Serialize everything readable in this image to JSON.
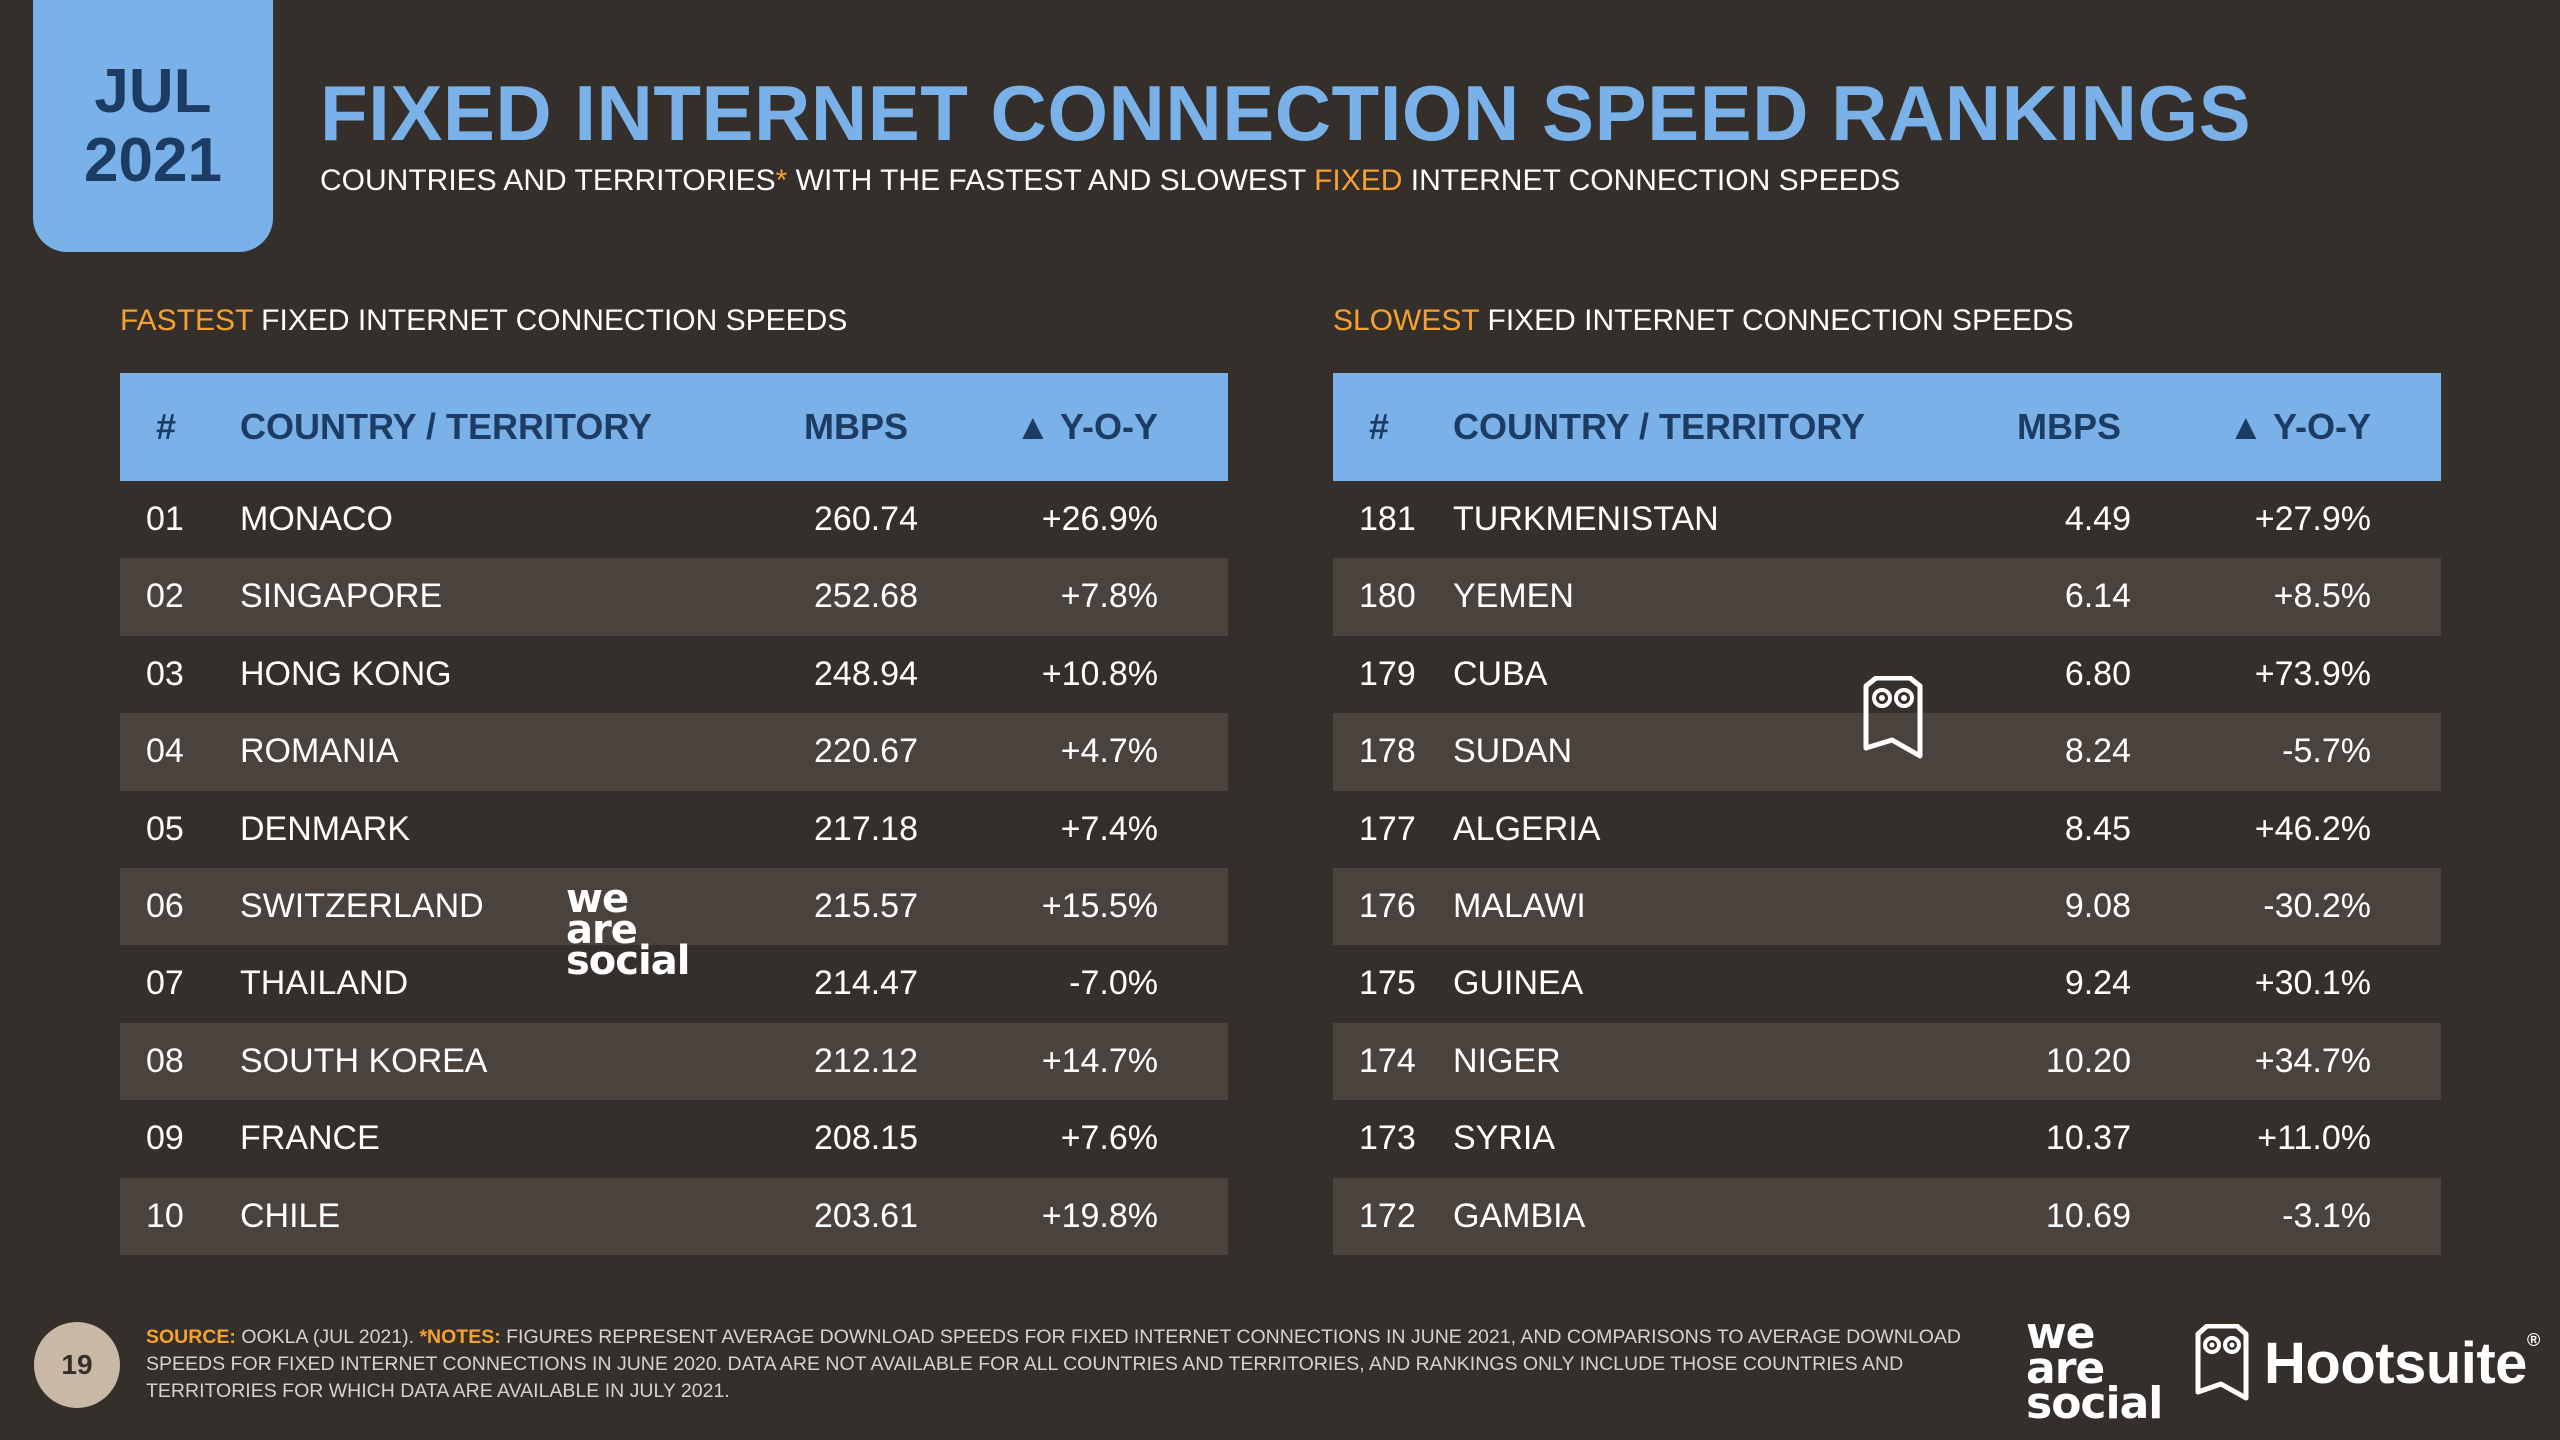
{
  "badge": {
    "month": "JUL",
    "year": "2021"
  },
  "title": "FIXED INTERNET CONNECTION SPEED RANKINGS",
  "subtitle": {
    "part1": "COUNTRIES AND TERRITORIES",
    "asterisk": "*",
    "part2": " WITH THE FASTEST AND SLOWEST ",
    "highlight": "FIXED",
    "part3": " INTERNET CONNECTION SPEEDS"
  },
  "fastest": {
    "heading_highlight": "FASTEST",
    "heading_rest": " FIXED INTERNET CONNECTION SPEEDS",
    "columns": {
      "rank": "#",
      "country": "COUNTRY / TERRITORY",
      "mbps": "MBPS",
      "yoy": "▲ Y-O-Y"
    },
    "rows": [
      {
        "rank": "01",
        "country": "MONACO",
        "mbps": "260.74",
        "yoy": "+26.9%"
      },
      {
        "rank": "02",
        "country": "SINGAPORE",
        "mbps": "252.68",
        "yoy": "+7.8%"
      },
      {
        "rank": "03",
        "country": "HONG KONG",
        "mbps": "248.94",
        "yoy": "+10.8%"
      },
      {
        "rank": "04",
        "country": "ROMANIA",
        "mbps": "220.67",
        "yoy": "+4.7%"
      },
      {
        "rank": "05",
        "country": "DENMARK",
        "mbps": "217.18",
        "yoy": "+7.4%"
      },
      {
        "rank": "06",
        "country": "SWITZERLAND",
        "mbps": "215.57",
        "yoy": "+15.5%"
      },
      {
        "rank": "07",
        "country": "THAILAND",
        "mbps": "214.47",
        "yoy": "-7.0%"
      },
      {
        "rank": "08",
        "country": "SOUTH KOREA",
        "mbps": "212.12",
        "yoy": "+14.7%"
      },
      {
        "rank": "09",
        "country": "FRANCE",
        "mbps": "208.15",
        "yoy": "+7.6%"
      },
      {
        "rank": "10",
        "country": "CHILE",
        "mbps": "203.61",
        "yoy": "+19.8%"
      }
    ]
  },
  "slowest": {
    "heading_highlight": "SLOWEST",
    "heading_rest": " FIXED INTERNET CONNECTION SPEEDS",
    "columns": {
      "rank": "#",
      "country": "COUNTRY / TERRITORY",
      "mbps": "MBPS",
      "yoy": "▲ Y-O-Y"
    },
    "rows": [
      {
        "rank": "181",
        "country": "TURKMENISTAN",
        "mbps": "4.49",
        "yoy": "+27.9%"
      },
      {
        "rank": "180",
        "country": "YEMEN",
        "mbps": "6.14",
        "yoy": "+8.5%"
      },
      {
        "rank": "179",
        "country": "CUBA",
        "mbps": "6.80",
        "yoy": "+73.9%"
      },
      {
        "rank": "178",
        "country": "SUDAN",
        "mbps": "8.24",
        "yoy": "-5.7%"
      },
      {
        "rank": "177",
        "country": "ALGERIA",
        "mbps": "8.45",
        "yoy": "+46.2%"
      },
      {
        "rank": "176",
        "country": "MALAWI",
        "mbps": "9.08",
        "yoy": "-30.2%"
      },
      {
        "rank": "175",
        "country": "GUINEA",
        "mbps": "9.24",
        "yoy": "+30.1%"
      },
      {
        "rank": "174",
        "country": "NIGER",
        "mbps": "10.20",
        "yoy": "+34.7%"
      },
      {
        "rank": "173",
        "country": "SYRIA",
        "mbps": "10.37",
        "yoy": "+11.0%"
      },
      {
        "rank": "172",
        "country": "GAMBIA",
        "mbps": "10.69",
        "yoy": "-3.1%"
      }
    ]
  },
  "watermarks": {
    "we": "we",
    "are": "are",
    "social": "social"
  },
  "footer": {
    "page_number": "19",
    "source_label": "SOURCE:",
    "source_text": " OOKLA (JUL 2021). ",
    "notes_label": "*NOTES:",
    "notes_text": " FIGURES REPRESENT AVERAGE DOWNLOAD SPEEDS FOR FIXED INTERNET CONNECTIONS IN JUNE 2021, AND COMPARISONS TO AVERAGE DOWNLOAD SPEEDS FOR FIXED INTERNET CONNECTIONS IN JUNE 2020. DATA ARE NOT AVAILABLE FOR ALL COUNTRIES AND TERRITORIES, AND RANKINGS ONLY INCLUDE THOSE COUNTRIES AND TERRITORIES FOR WHICH DATA ARE AVAILABLE IN JULY 2021.",
    "logo_we": "we",
    "logo_are": "are",
    "logo_social": "social",
    "hootsuite": "Hootsuite",
    "registered": "®"
  },
  "colors": {
    "background": "#352f2b",
    "accent_blue": "#79b1e8",
    "accent_orange": "#f5a12f",
    "alt_row": "#4a423c"
  }
}
